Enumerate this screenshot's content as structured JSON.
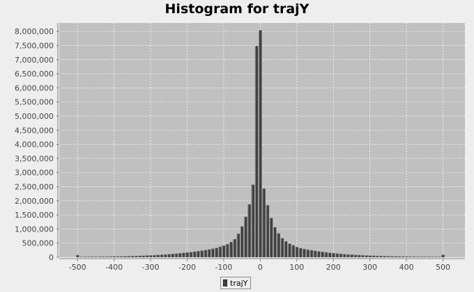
{
  "chart_data": {
    "type": "bar",
    "title": "Histogram for trajY",
    "xlabel": "",
    "ylabel": "",
    "xlim": [
      -550,
      560
    ],
    "ylim": [
      0,
      8300000
    ],
    "x_ticks": [
      -500,
      -400,
      -300,
      -200,
      -100,
      0,
      100,
      200,
      300,
      400,
      500
    ],
    "y_ticks": [
      0,
      500000,
      1000000,
      1500000,
      2000000,
      2500000,
      3000000,
      3500000,
      4000000,
      4500000,
      5000000,
      5500000,
      6000000,
      6500000,
      7000000,
      7500000,
      8000000
    ],
    "y_tick_labels": [
      "0",
      "500,000",
      "1,000,000",
      "1,500,000",
      "2,000,000",
      "2,500,000",
      "3,000,000",
      "3,500,000",
      "4,000,000",
      "4,500,000",
      "5,000,000",
      "5,500,000",
      "6,000,000",
      "6,500,000",
      "7,000,000",
      "7,500,000",
      "8,000,000"
    ],
    "grid": true,
    "legend_position": "bottom-center",
    "bin_width": 10,
    "series": [
      {
        "name": "trajY",
        "color": "#404040",
        "x": [
          -500,
          -490,
          -480,
          -470,
          -460,
          -450,
          -440,
          -430,
          -420,
          -410,
          -400,
          -390,
          -380,
          -370,
          -360,
          -350,
          -340,
          -330,
          -320,
          -310,
          -300,
          -290,
          -280,
          -270,
          -260,
          -250,
          -240,
          -230,
          -220,
          -210,
          -200,
          -190,
          -180,
          -170,
          -160,
          -150,
          -140,
          -130,
          -120,
          -110,
          -100,
          -90,
          -80,
          -70,
          -60,
          -50,
          -40,
          -30,
          -20,
          -10,
          0,
          10,
          20,
          30,
          40,
          50,
          60,
          70,
          80,
          90,
          100,
          110,
          120,
          130,
          140,
          150,
          160,
          170,
          180,
          190,
          200,
          210,
          220,
          230,
          240,
          250,
          260,
          270,
          280,
          290,
          300,
          310,
          320,
          330,
          340,
          350,
          360,
          370,
          380,
          390,
          400,
          410,
          420,
          430,
          440,
          450,
          460,
          470,
          480,
          490,
          500
        ],
        "values": [
          75000,
          15000,
          16000,
          17000,
          18000,
          19000,
          20000,
          22000,
          24000,
          26000,
          28000,
          30000,
          33000,
          36000,
          39000,
          42000,
          46000,
          50000,
          55000,
          60000,
          65000,
          72000,
          80000,
          88000,
          96000,
          105000,
          115000,
          125000,
          138000,
          152000,
          165000,
          180000,
          197000,
          215000,
          233000,
          252000,
          275000,
          300000,
          330000,
          370000,
          410000,
          460000,
          540000,
          640000,
          830000,
          1090000,
          1430000,
          1870000,
          2570000,
          7480000,
          8040000,
          2430000,
          1840000,
          1390000,
          1060000,
          840000,
          670000,
          560000,
          480000,
          420000,
          360000,
          320000,
          290000,
          265000,
          245000,
          225000,
          205000,
          188000,
          172000,
          158000,
          145000,
          132000,
          120000,
          108000,
          98000,
          90000,
          82000,
          75000,
          68000,
          62000,
          57000,
          52000,
          48000,
          44000,
          40000,
          37000,
          34000,
          31000,
          29000,
          27000,
          25000,
          23000,
          21000,
          20000,
          19000,
          18000,
          17000,
          16000,
          15000,
          15000,
          85000
        ]
      }
    ]
  },
  "legend": {
    "label": "trajY"
  }
}
